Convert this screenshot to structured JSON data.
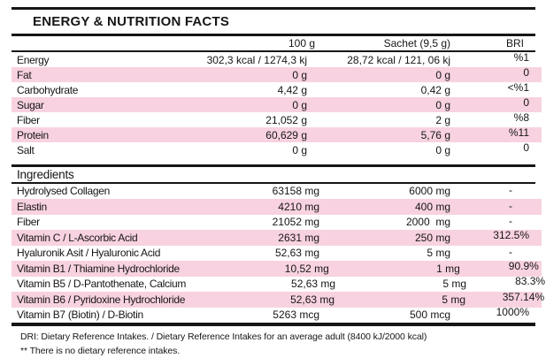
{
  "title": "ENERGY & NUTRITION FACTS",
  "columns": {
    "per_100g": "100 g",
    "sachet": "Sachet (9,5 g)",
    "bri": "BRI"
  },
  "nutrition_rows": [
    {
      "label": "Energy",
      "per_100g": "302,3 kcal / 1274,3 kj",
      "sachet": "28,72 kcal / 121, 06 kj",
      "bri": "%1"
    },
    {
      "label": "Fat",
      "per_100g": "0 g",
      "sachet": "0 g",
      "bri": "0"
    },
    {
      "label": "Carbohydrate",
      "per_100g": "4,42 g",
      "sachet": "0,42 g",
      "bri": "<%1"
    },
    {
      "label": "Sugar",
      "per_100g": "0 g",
      "sachet": "0 g",
      "bri": "0"
    },
    {
      "label": "Fiber",
      "per_100g": "21,052 g",
      "sachet": "2 g",
      "bri": "%8"
    },
    {
      "label": "Protein",
      "per_100g": "60,629 g",
      "sachet": "5,76 g",
      "bri": "%11"
    },
    {
      "label": "Salt",
      "per_100g": "0 g",
      "sachet": "0 g",
      "bri": "0"
    }
  ],
  "ingredients_heading": "Ingredients",
  "ingredient_rows": [
    {
      "label": "Hydrolysed Collagen",
      "per_100g": "63158 mg",
      "sachet": "6000 mg",
      "bri": "-"
    },
    {
      "label": "Elastin",
      "per_100g": "4210 mg",
      "sachet": "400 mg",
      "bri": "-"
    },
    {
      "label": "Fiber",
      "per_100g": "21052 mg",
      "sachet": "2000  mg",
      "bri": "-"
    },
    {
      "label": "Vitamin C / L-Ascorbic Acid",
      "per_100g": "2631 mg",
      "sachet": "250 mg",
      "bri": "312.5%"
    },
    {
      "label": "Hyaluronik Asit / Hyaluronic Acid",
      "per_100g": "52,63 mg",
      "sachet": "5 mg",
      "bri": "-"
    },
    {
      "label": "Vitamin B1 / Thiamine Hydrochloride",
      "per_100g": "10,52 mg",
      "sachet": "1 mg",
      "bri": "90.9%"
    },
    {
      "label": "Vitamin B5 / D-Pantothenate, Calcium",
      "per_100g": "52,63 mg",
      "sachet": "5 mg",
      "bri": "83.3%"
    },
    {
      "label": "Vitamin B6 / Pyridoxine Hydrochloride",
      "per_100g": "52,63 mg",
      "sachet": "5 mg",
      "bri": "357.14%"
    },
    {
      "label": "Vitamin B7 (Biotin) / D-Biotin",
      "per_100g": "5263 mcg",
      "sachet": "500 mcg",
      "bri": "1000%"
    }
  ],
  "footnotes": [
    "DRI: Dietary Reference Intakes. / Dietary Reference Intakes for an average adult (8400 kJ/2000 kcal)",
    "** There is no dietary reference intakes."
  ],
  "colors": {
    "stripe_pink": "#f8d2e0",
    "line_black": "#161616"
  }
}
